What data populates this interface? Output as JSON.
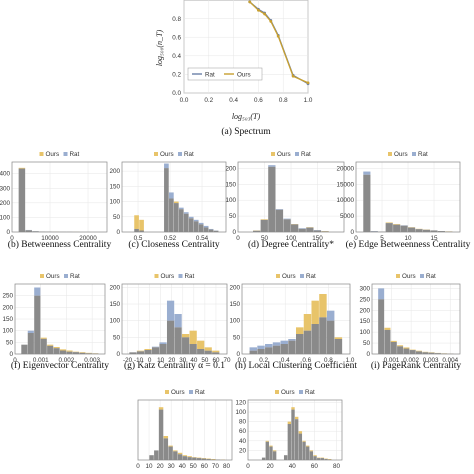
{
  "colors": {
    "ours": "#e8c46a",
    "rat": "#9aaed0",
    "overlap": "#8a8a8a",
    "ours_line": "#c8a030",
    "rat_line": "#6a7fa8"
  },
  "spectrum": {
    "caption": "(a) Spectrum",
    "xlabel": "log₅₀₃(T)",
    "ylabel": "log₅₀₀(n_T)",
    "xticks": [
      "0.0",
      "0.2",
      "0.4",
      "0.6",
      "0.8",
      "1.0"
    ],
    "yticks": [
      "0.8",
      "0.6",
      "0.4",
      "0.2",
      "0.0"
    ],
    "legend": [
      "Rat",
      "Ours"
    ]
  },
  "chart_data": [
    {
      "type": "line",
      "x": [
        0.53,
        0.6,
        0.65,
        0.7,
        0.76,
        0.88,
        1.0
      ],
      "series": [
        {
          "name": "Rat",
          "values": [
            0.98,
            0.9,
            0.86,
            0.78,
            0.62,
            0.19,
            0.1
          ]
        },
        {
          "name": "Ours",
          "values": [
            0.98,
            0.89,
            0.85,
            0.77,
            0.61,
            0.18,
            0.11
          ]
        }
      ],
      "xlabel": "log₅₀₃(T)",
      "ylabel": "log₅₀₀(n_T)",
      "xlim": [
        0,
        1
      ],
      "ylim": [
        0,
        1
      ]
    },
    {
      "type": "bar",
      "caption": "(b) Betweenness Centrality",
      "bins": [
        0,
        2,
        4,
        6,
        8,
        10,
        12,
        14,
        16,
        18,
        20,
        22
      ],
      "xlim": [
        0,
        25000
      ],
      "ylim": [
        0,
        480
      ],
      "xticks": [
        "0",
        "10000",
        "20000"
      ],
      "yticks": [
        "0",
        "100",
        "200",
        "300",
        "400"
      ],
      "series": [
        {
          "name": "Ours",
          "values": [
            440,
            12,
            5,
            3,
            2,
            2,
            1,
            1,
            1,
            0,
            0,
            0
          ]
        },
        {
          "name": "Rat",
          "values": [
            435,
            14,
            6,
            3,
            2,
            1,
            1,
            1,
            0,
            0,
            0,
            0
          ]
        }
      ]
    },
    {
      "type": "bar",
      "caption": "(c) Closeness Centrality",
      "xlim": [
        0.49,
        0.555
      ],
      "ylim": [
        0,
        230
      ],
      "xticks": [
        "0.5",
        "0.52",
        "0.54"
      ],
      "yticks": [
        "0",
        "50",
        "100",
        "150",
        "200"
      ],
      "series": [
        {
          "name": "Ours",
          "values": [
            0,
            55,
            40,
            0,
            0,
            0,
            0,
            210,
            110,
            100,
            75,
            60,
            45,
            35,
            25,
            15,
            8,
            4
          ]
        },
        {
          "name": "Rat",
          "values": [
            0,
            10,
            5,
            0,
            0,
            0,
            0,
            225,
            130,
            95,
            80,
            65,
            50,
            40,
            30,
            20,
            10,
            5
          ]
        }
      ]
    },
    {
      "type": "bar",
      "caption": "(d) Degree Centrality*",
      "xlim": [
        0,
        200
      ],
      "ylim": [
        0,
        220
      ],
      "xticks": [
        "0",
        "50",
        "100",
        "150"
      ],
      "yticks": [
        "0",
        "50",
        "100",
        "150",
        "200"
      ],
      "series": [
        {
          "name": "Ours",
          "values": [
            0,
            5,
            40,
            205,
            70,
            40,
            25,
            10,
            15,
            5,
            3,
            0
          ]
        },
        {
          "name": "Rat",
          "values": [
            0,
            4,
            38,
            210,
            72,
            42,
            24,
            12,
            14,
            6,
            2,
            0
          ]
        }
      ]
    },
    {
      "type": "bar",
      "caption": "(e) Edge Betweenness Centrality",
      "xlim": [
        0,
        20
      ],
      "ylim": [
        0,
        22000
      ],
      "xticks": [
        "0",
        "5",
        "10",
        "15"
      ],
      "yticks": [
        "0",
        "5000",
        "10000",
        "15000",
        "20000"
      ],
      "series": [
        {
          "name": "Ours",
          "values": [
            18000,
            200,
            100,
            3000,
            2500,
            2000,
            1500,
            1000,
            800,
            500,
            300,
            200
          ]
        },
        {
          "name": "Rat",
          "values": [
            19000,
            300,
            100,
            2800,
            2300,
            2100,
            1400,
            900,
            700,
            500,
            300,
            100
          ]
        }
      ]
    },
    {
      "type": "bar",
      "caption": "(f) Eigenvector Centrality",
      "xlim": [
        0,
        0.0035
      ],
      "ylim": [
        0,
        300
      ],
      "xticks": [
        "0",
        "0.001",
        "0.002",
        "0.003"
      ],
      "yticks": [
        "0",
        "50",
        "100",
        "150",
        "200",
        "250"
      ],
      "series": [
        {
          "name": "Ours",
          "values": [
            40,
            90,
            250,
            70,
            40,
            30,
            20,
            15,
            10,
            8,
            5,
            3
          ]
        },
        {
          "name": "Rat",
          "values": [
            40,
            100,
            285,
            65,
            35,
            25,
            15,
            10,
            8,
            5,
            3,
            2
          ]
        }
      ]
    },
    {
      "type": "bar",
      "caption": "(g) Katz Centrality α = 0.1",
      "xlim": [
        -25,
        70
      ],
      "ylim": [
        0,
        210
      ],
      "xticks": [
        "-20",
        "-10",
        "0",
        "10",
        "20",
        "30",
        "40",
        "50",
        "60",
        "70"
      ],
      "yticks": [
        "0",
        "50",
        "100",
        "150",
        "200"
      ],
      "series": [
        {
          "name": "Ours",
          "values": [
            5,
            10,
            15,
            20,
            30,
            100,
            80,
            60,
            70,
            40,
            20,
            10
          ]
        },
        {
          "name": "Rat",
          "values": [
            5,
            8,
            12,
            22,
            35,
            160,
            120,
            50,
            30,
            15,
            10,
            5
          ]
        }
      ]
    },
    {
      "type": "bar",
      "caption": "(h) Local Clustering Coefficient",
      "xlim": [
        0,
        1
      ],
      "ylim": [
        0,
        210
      ],
      "xticks": [
        "0.0",
        "0.2",
        "0.4",
        "0.6",
        "0.8",
        "1.0"
      ],
      "yticks": [
        "0",
        "50",
        "100",
        "150",
        "200"
      ],
      "series": [
        {
          "name": "Ours",
          "values": [
            10,
            15,
            20,
            25,
            30,
            40,
            80,
            120,
            160,
            180,
            100,
            50
          ]
        },
        {
          "name": "Rat",
          "values": [
            20,
            25,
            30,
            35,
            40,
            45,
            60,
            70,
            90,
            110,
            130,
            45
          ]
        }
      ]
    },
    {
      "type": "bar",
      "caption": "(i) PageRank Centrality",
      "xlim": [
        0,
        0.0045
      ],
      "ylim": [
        0,
        320
      ],
      "xticks": [
        "0.001",
        "0.002",
        "0.003",
        "0.004"
      ],
      "yticks": [
        "0",
        "50",
        "100",
        "150",
        "200",
        "250",
        "300"
      ],
      "series": [
        {
          "name": "Ours",
          "values": [
            250,
            120,
            60,
            40,
            30,
            20,
            15,
            10,
            8,
            5,
            3,
            2
          ]
        },
        {
          "name": "Rat",
          "values": [
            300,
            110,
            55,
            35,
            25,
            18,
            12,
            8,
            6,
            4,
            2,
            1
          ]
        }
      ]
    },
    {
      "type": "bar",
      "caption": "",
      "xlim": [
        0,
        85
      ],
      "ylim": [
        0,
        125
      ],
      "xticks": [
        "0",
        "10",
        "20",
        "30",
        "40",
        "50",
        "60",
        "70",
        "80"
      ],
      "yticks": [],
      "series": [
        {
          "name": "Ours",
          "values": [
            0,
            10,
            20,
            110,
            50,
            30,
            20,
            15,
            10,
            8,
            6,
            5,
            4,
            3,
            2,
            1,
            1
          ]
        },
        {
          "name": "Rat",
          "values": [
            0,
            10,
            20,
            105,
            45,
            28,
            18,
            12,
            8,
            6,
            5,
            4,
            3,
            2,
            1,
            1,
            0
          ]
        }
      ]
    },
    {
      "type": "bar",
      "caption": "",
      "xlim": [
        0,
        85
      ],
      "ylim": [
        0,
        125
      ],
      "xticks": [
        "0",
        "20",
        "40",
        "60",
        "80"
      ],
      "yticks": [
        "20",
        "40",
        "60",
        "80",
        "100",
        "120"
      ],
      "series": [
        {
          "name": "Ours",
          "values": [
            0,
            0,
            5,
            40,
            30,
            20,
            0,
            0,
            10,
            80,
            110,
            90,
            60,
            40,
            30,
            20,
            10,
            5,
            5,
            3,
            2,
            0
          ]
        },
        {
          "name": "Rat",
          "values": [
            0,
            0,
            5,
            38,
            28,
            18,
            0,
            0,
            10,
            75,
            105,
            85,
            55,
            38,
            28,
            18,
            8,
            4,
            4,
            2,
            1,
            0
          ]
        }
      ]
    }
  ],
  "legend_labels": [
    "Ours",
    "Rat"
  ]
}
